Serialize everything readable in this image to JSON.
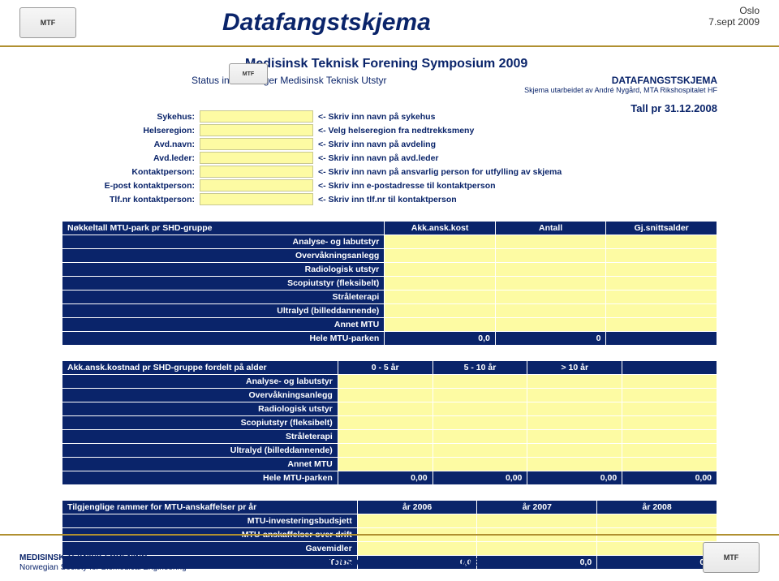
{
  "colors": {
    "navy": "#0a246a",
    "gold": "#b09030",
    "yellow": "#fdfba3",
    "white": "#ffffff"
  },
  "page": {
    "title": "Datafangstskjema",
    "corner_line1": "Oslo",
    "corner_line2": "7.sept 2009",
    "footer_org_line1": "MEDISINSK TEKNISK FORENING",
    "footer_org_line2": "Norwegian Society for Biomedical Engineering",
    "footer_center": "Medisinsk Teknisk Forening Symposium 2009",
    "logo_text": "MTF"
  },
  "form_header": {
    "line1": "Medisinsk Teknisk Forening Symposium 2009",
    "line2_left": "Status investeringer Medisinsk Teknisk Utstyr",
    "line2_right": "DATAFANGSTSKJEMA",
    "line3": "Skjema utarbeidet av André Nygård, MTA Rikshospitalet HF",
    "tall_pr": "Tall pr 31.12.2008"
  },
  "fields": [
    {
      "label": "Sykehus:",
      "hint": "<- Skriv inn navn på sykehus"
    },
    {
      "label": "Helseregion:",
      "hint": "<- Velg helseregion fra nedtrekksmeny"
    },
    {
      "label": "Avd.navn:",
      "hint": "<- Skriv inn navn på avdeling"
    },
    {
      "label": "Avd.leder:",
      "hint": "<- Skriv inn navn på avd.leder"
    },
    {
      "label": "Kontaktperson:",
      "hint": "<- Skriv inn navn på ansvarlig person for utfylling av skjema"
    },
    {
      "label": "E-post kontaktperson:",
      "hint": "<- Skriv inn e-postadresse til kontaktperson"
    },
    {
      "label": "Tlf.nr kontaktperson:",
      "hint": "<- Skriv inn tlf.nr til kontaktperson"
    }
  ],
  "table1": {
    "title": "Nøkkeltall MTU-park pr SHD-gruppe",
    "cols": [
      "Akk.ansk.kost",
      "Antall",
      "Gj.snittsalder"
    ],
    "cats": [
      "Analyse- og labutstyr",
      "Overvåkningsanlegg",
      "Radiologisk utstyr",
      "Scopiutstyr (fleksibelt)",
      "Stråleterapi",
      "Ultralyd (billeddannende)",
      "Annet MTU"
    ],
    "total_label": "Hele MTU-parken",
    "total": [
      "0,0",
      "0",
      ""
    ]
  },
  "table2": {
    "title": "Akk.ansk.kostnad pr SHD-gruppe fordelt på alder",
    "cols": [
      "0 - 5 år",
      "5 - 10 år",
      "> 10 år",
      ""
    ],
    "cats": [
      "Analyse- og labutstyr",
      "Overvåkningsanlegg",
      "Radiologisk utstyr",
      "Scopiutstyr (fleksibelt)",
      "Stråleterapi",
      "Ultralyd (billeddannende)",
      "Annet MTU"
    ],
    "total_label": "Hele MTU-parken",
    "total": [
      "0,00",
      "0,00",
      "0,00",
      "0,00"
    ]
  },
  "table3": {
    "title": "Tilgjenglige rammer for MTU-anskaffelser pr år",
    "cols": [
      "år 2006",
      "år 2007",
      "år 2008"
    ],
    "cats": [
      "MTU-investeringsbudsjett",
      "MTU-anskaffelser over drift",
      "Gavemidler"
    ],
    "total_label": "Totalt",
    "total": [
      "0,0",
      "0,0",
      "0,0"
    ]
  }
}
